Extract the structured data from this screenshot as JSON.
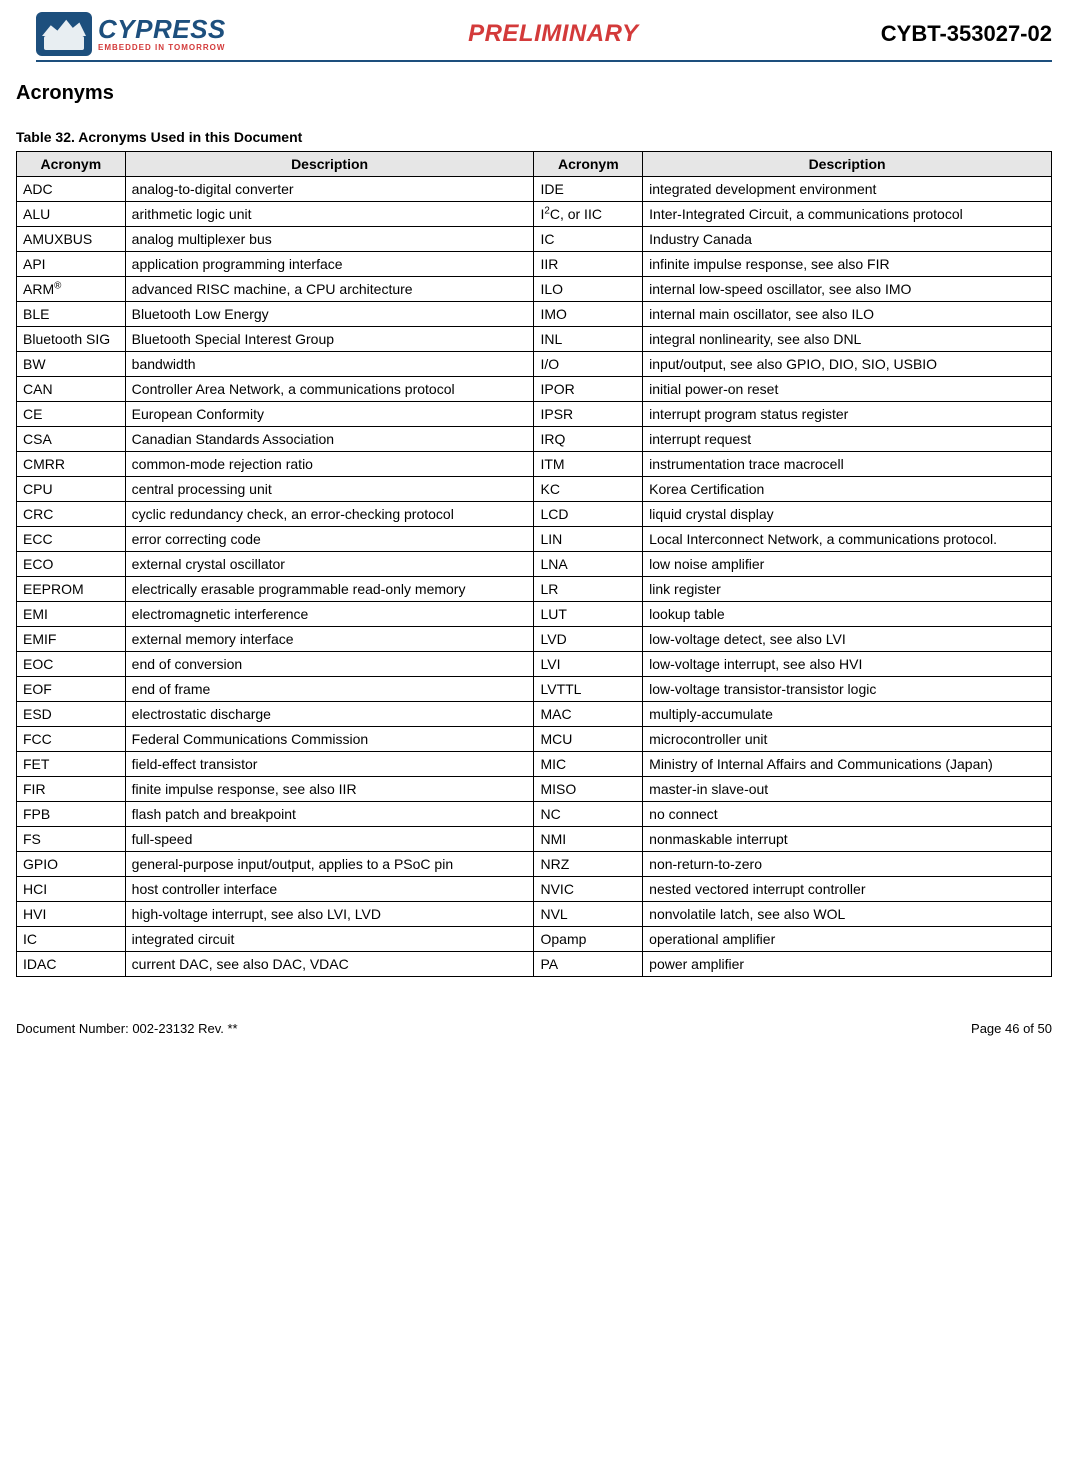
{
  "header": {
    "logo_main": "CYPRESS",
    "logo_sub": "EMBEDDED IN TOMORROW",
    "preliminary": "PRELIMINARY",
    "partnum": "CYBT-353027-02"
  },
  "section_title": "Acronyms",
  "table_caption": "Table 32.  Acronyms Used in this Document",
  "columns": [
    "Acronym",
    "Description",
    "Acronym",
    "Description"
  ],
  "rows": [
    [
      "ADC",
      "analog-to-digital converter",
      "IDE",
      "integrated development environment"
    ],
    [
      "ALU",
      "arithmetic logic unit",
      "I<sup>2</sup>C, or IIC",
      "Inter-Integrated Circuit, a communications protocol"
    ],
    [
      "AMUXBUS",
      "analog multiplexer bus",
      "IC",
      "Industry Canada"
    ],
    [
      "API",
      "application programming interface",
      "IIR",
      "infinite impulse response, see also FIR"
    ],
    [
      "ARM<sup>®</sup>",
      "advanced RISC machine, a CPU architecture",
      "ILO",
      "internal low-speed oscillator, see also IMO"
    ],
    [
      "BLE",
      "Bluetooth Low Energy",
      "IMO",
      "internal main oscillator, see also ILO"
    ],
    [
      "Bluetooth SIG",
      "Bluetooth Special Interest Group",
      "INL",
      "integral nonlinearity, see also DNL"
    ],
    [
      "BW",
      "bandwidth",
      "I/O",
      "input/output, see also GPIO, DIO, SIO, USBIO"
    ],
    [
      "CAN",
      "Controller Area Network, a communications protocol",
      "IPOR",
      "initial power-on reset"
    ],
    [
      "CE",
      "European Conformity",
      "IPSR",
      "interrupt program status register"
    ],
    [
      "CSA",
      "Canadian Standards Association",
      "IRQ",
      "interrupt request"
    ],
    [
      "CMRR",
      "common-mode rejection ratio",
      "ITM",
      "instrumentation trace macrocell"
    ],
    [
      "CPU",
      "central processing unit",
      "KC",
      "Korea Certification"
    ],
    [
      "CRC",
      "cyclic redundancy check, an error-checking protocol",
      "LCD",
      "liquid crystal display"
    ],
    [
      "ECC",
      "error correcting code",
      "LIN",
      "Local Interconnect Network, a communications protocol."
    ],
    [
      "ECO",
      "external crystal oscillator",
      "LNA",
      "low noise amplifier"
    ],
    [
      "EEPROM",
      "electrically erasable programmable read-only memory",
      "LR",
      "link register"
    ],
    [
      "EMI",
      "electromagnetic interference",
      "LUT",
      "lookup table"
    ],
    [
      "EMIF",
      "external memory interface",
      "LVD",
      "low-voltage detect, see also LVI"
    ],
    [
      "EOC",
      "end of conversion",
      "LVI",
      "low-voltage interrupt, see also HVI"
    ],
    [
      "EOF",
      "end of frame",
      "LVTTL",
      "low-voltage transistor-transistor logic"
    ],
    [
      "ESD",
      "electrostatic discharge",
      "MAC",
      "multiply-accumulate"
    ],
    [
      "FCC",
      "Federal Communications Commission",
      "MCU",
      "microcontroller unit"
    ],
    [
      "FET",
      "field-effect transistor",
      "MIC",
      "Ministry of Internal Affairs and Communications (Japan)"
    ],
    [
      "FIR",
      "finite impulse response, see also IIR",
      "MISO",
      "master-in slave-out"
    ],
    [
      "FPB",
      "flash patch and breakpoint",
      "NC",
      "no connect"
    ],
    [
      "FS",
      "full-speed",
      "NMI",
      "nonmaskable interrupt"
    ],
    [
      "GPIO",
      "general-purpose input/output, applies to a PSoC pin",
      "NRZ",
      "non-return-to-zero"
    ],
    [
      "HCI",
      "host controller interface",
      "NVIC",
      "nested vectored interrupt controller"
    ],
    [
      "HVI",
      "high-voltage interrupt, see also LVI, LVD",
      "NVL",
      "nonvolatile latch, see also WOL"
    ],
    [
      "IC",
      "integrated circuit",
      "Opamp",
      "operational amplifier"
    ],
    [
      "IDAC",
      "current DAC, see also DAC, VDAC",
      "PA",
      "power amplifier"
    ]
  ],
  "footer": {
    "left": "Document Number: 002-23132 Rev. **",
    "right": "Page 46 of 50"
  }
}
